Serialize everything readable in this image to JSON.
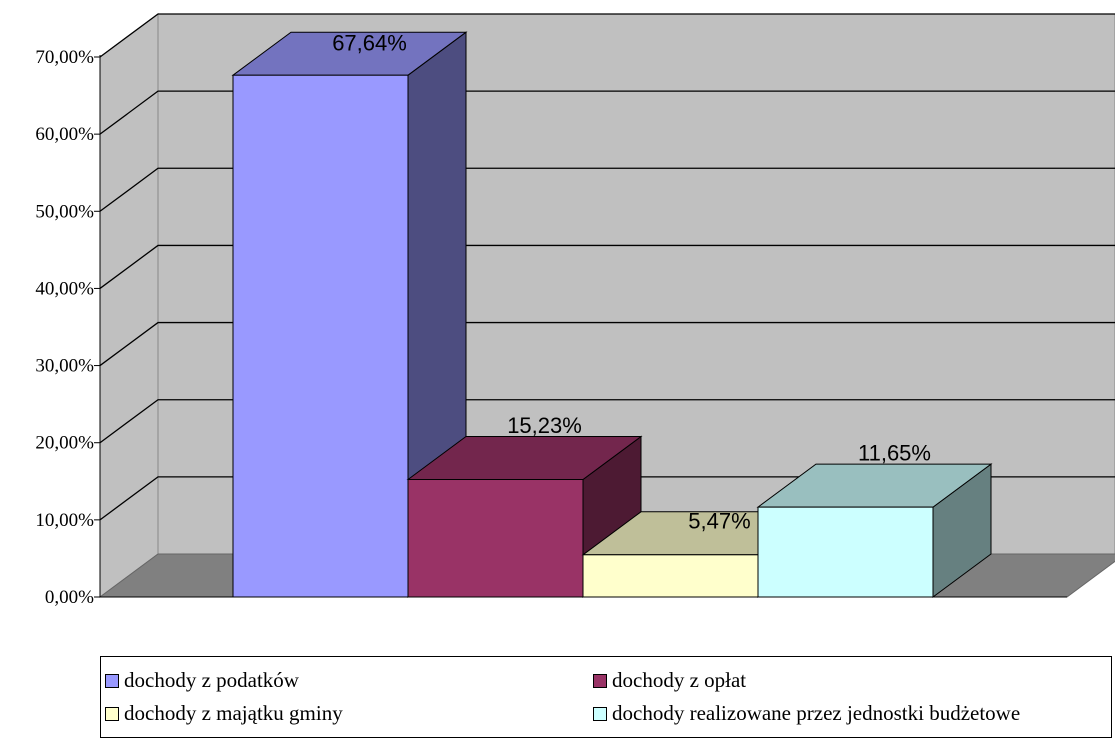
{
  "chart_data": {
    "type": "bar",
    "style": "3d-column",
    "title": "",
    "xlabel": "",
    "ylabel": "",
    "ylim": [
      0,
      70
    ],
    "yticks": [
      "0,00%",
      "10,00%",
      "20,00%",
      "30,00%",
      "40,00%",
      "50,00%",
      "60,00%",
      "70,00%"
    ],
    "grid": true,
    "legend_position": "bottom",
    "series": [
      {
        "name": "dochody z podatków",
        "value": 67.64,
        "label": "67,64%",
        "color": "#9999ff"
      },
      {
        "name": "dochody z opłat",
        "value": 15.23,
        "label": "15,23%",
        "color": "#993366"
      },
      {
        "name": "dochody z majątku gminy",
        "value": 5.47,
        "label": "5,47%",
        "color": "#ffffcc"
      },
      {
        "name": "dochody realizowane przez jednostki budżetowe",
        "value": 11.65,
        "label": "11,65%",
        "color": "#ccffff"
      }
    ]
  }
}
